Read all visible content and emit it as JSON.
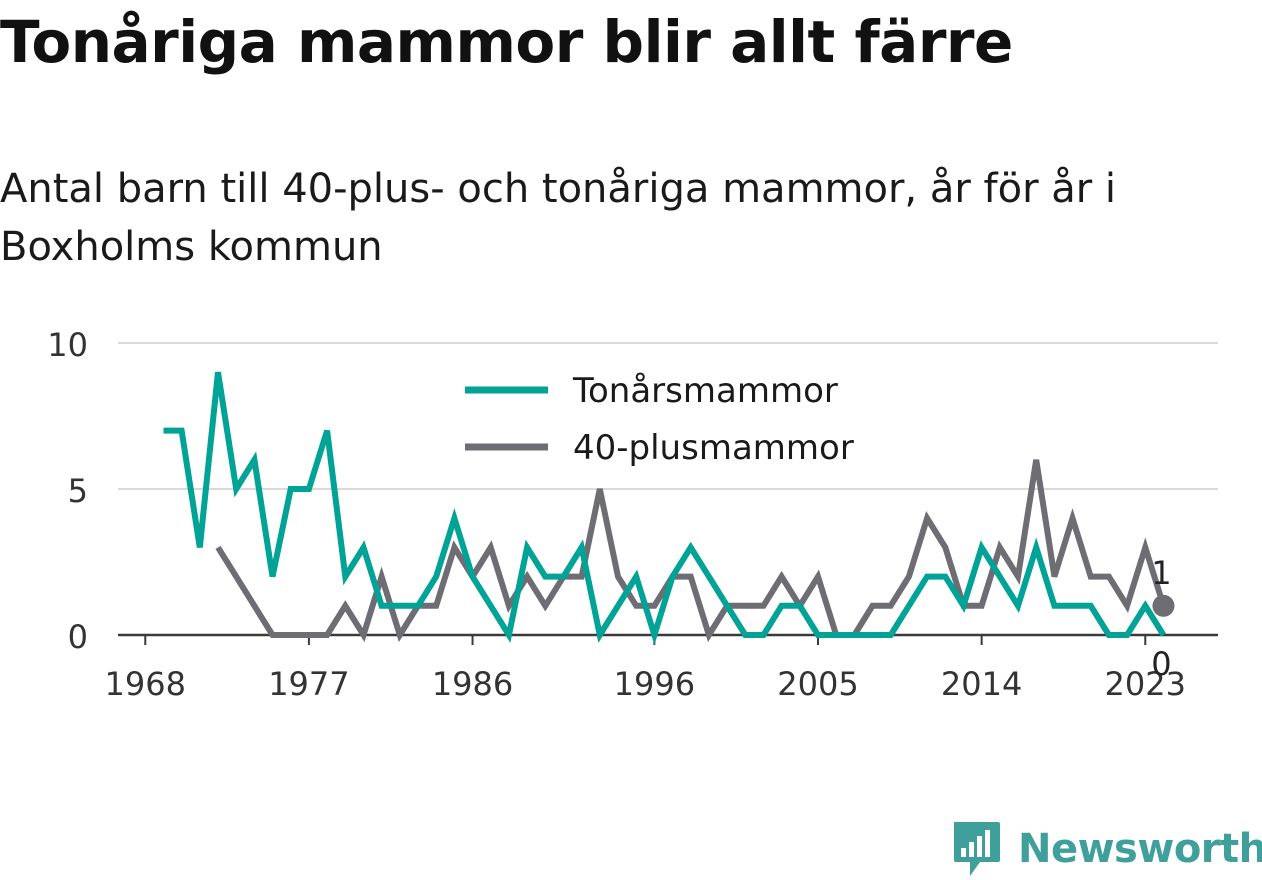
{
  "title": "Tonåriga mammor blir allt färre",
  "subtitle": "Antal barn till 40-plus- och tonåriga mammor, år för år i Boxholms kommun",
  "brand": {
    "name": "Newsworthy",
    "color": "#3f9f9a"
  },
  "chart_data": {
    "type": "line",
    "xlim": [
      1966.5,
      2027
    ],
    "ylim": [
      0,
      10
    ],
    "x_ticks": [
      1968,
      1977,
      1986,
      1996,
      2005,
      2014,
      2023
    ],
    "y_ticks": [
      0,
      5,
      10
    ],
    "legend": "top-center",
    "grid": true,
    "series": [
      {
        "name": "Tonårsmammor",
        "color": "#00a396",
        "x": [
          1969,
          1970,
          1971,
          1972,
          1973,
          1974,
          1975,
          1976,
          1977,
          1978,
          1979,
          1980,
          1981,
          1982,
          1983,
          1984,
          1985,
          1986,
          1987,
          1988,
          1989,
          1990,
          1991,
          1992,
          1993,
          1994,
          1995,
          1996,
          1997,
          1998,
          1999,
          2000,
          2001,
          2002,
          2003,
          2004,
          2005,
          2006,
          2007,
          2008,
          2009,
          2010,
          2011,
          2012,
          2013,
          2014,
          2015,
          2016,
          2017,
          2018,
          2019,
          2020,
          2021,
          2022,
          2023,
          2024
        ],
        "values": [
          7,
          7,
          3,
          9,
          5,
          6,
          2,
          5,
          5,
          7,
          2,
          3,
          1,
          1,
          1,
          2,
          4,
          2,
          1,
          0,
          3,
          2,
          2,
          3,
          0,
          1,
          2,
          0,
          2,
          3,
          2,
          1,
          0,
          0,
          1,
          1,
          0,
          0,
          0,
          0,
          0,
          1,
          2,
          2,
          1,
          3,
          2,
          1,
          3,
          1,
          1,
          1,
          0,
          0,
          1,
          0
        ],
        "end_label": "0"
      },
      {
        "name": "40-plusmammor",
        "color": "#6e6d73",
        "x": [
          1972,
          1973,
          1974,
          1975,
          1976,
          1977,
          1978,
          1979,
          1980,
          1981,
          1982,
          1983,
          1984,
          1985,
          1986,
          1987,
          1988,
          1989,
          1990,
          1991,
          1992,
          1993,
          1994,
          1995,
          1996,
          1997,
          1998,
          1999,
          2000,
          2001,
          2002,
          2003,
          2004,
          2005,
          2006,
          2007,
          2008,
          2009,
          2010,
          2011,
          2012,
          2013,
          2014,
          2015,
          2016,
          2017,
          2018,
          2019,
          2020,
          2021,
          2022,
          2023,
          2024
        ],
        "values": [
          3,
          2,
          1,
          0,
          0,
          0,
          0,
          1,
          0,
          2,
          0,
          1,
          1,
          3,
          2,
          3,
          1,
          2,
          1,
          2,
          2,
          5,
          2,
          1,
          1,
          2,
          2,
          0,
          1,
          1,
          1,
          2,
          1,
          2,
          0,
          0,
          1,
          1,
          2,
          4,
          3,
          1,
          1,
          3,
          2,
          6,
          2,
          4,
          2,
          2,
          1,
          3,
          1
        ],
        "end_label": "1"
      }
    ]
  }
}
